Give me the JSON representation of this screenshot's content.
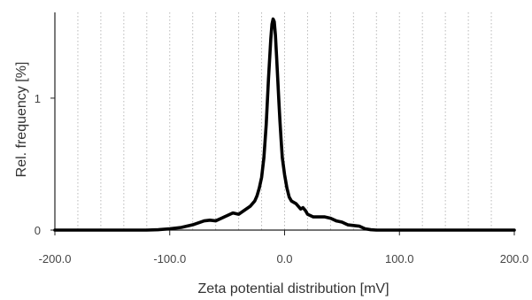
{
  "chart_data": {
    "type": "line",
    "title": "",
    "xlabel": "Zeta potential distribution [mV]",
    "ylabel": "Rel. frequency [%]",
    "xlim": [
      -200,
      200
    ],
    "ylim": [
      0,
      1.65
    ],
    "x_ticks": [
      -200,
      -100,
      0,
      100,
      200
    ],
    "x_tick_labels": [
      "-200.0",
      "-100.0",
      "0.0",
      "100.0",
      "200.0"
    ],
    "y_ticks": [
      0,
      1
    ],
    "y_tick_labels": [
      "0",
      "1"
    ],
    "grid": "vertical-dotted",
    "grid_x": [
      -180,
      -160,
      -140,
      -120,
      -100,
      -80,
      -60,
      -40,
      -20,
      0,
      20,
      40,
      60,
      80,
      100,
      120,
      140,
      160,
      180
    ],
    "line_color": "#000000",
    "grid_color": "#b8b8b8",
    "series": [
      {
        "x": [
          -200,
          -150,
          -120,
          -110,
          -100,
          -95,
          -90,
          -85,
          -80,
          -75,
          -70,
          -65,
          -60,
          -55,
          -50,
          -45,
          -40,
          -35,
          -30,
          -28,
          -26,
          -24,
          -22,
          -20,
          -18,
          -16,
          -14,
          -12,
          -11,
          -10,
          -9,
          -8,
          -7,
          -6,
          -5,
          -4,
          -3,
          -2,
          0,
          2,
          4,
          6,
          8,
          10,
          12,
          14,
          16,
          18,
          20,
          25,
          30,
          35,
          40,
          45,
          50,
          55,
          60,
          65,
          70,
          75,
          80,
          100,
          150,
          200
        ],
        "y": [
          0,
          0,
          0,
          0.003,
          0.01,
          0.015,
          0.02,
          0.03,
          0.04,
          0.055,
          0.07,
          0.075,
          0.07,
          0.09,
          0.11,
          0.13,
          0.12,
          0.15,
          0.18,
          0.2,
          0.22,
          0.26,
          0.32,
          0.4,
          0.55,
          0.8,
          1.15,
          1.45,
          1.56,
          1.6,
          1.58,
          1.48,
          1.32,
          1.15,
          0.98,
          0.82,
          0.68,
          0.55,
          0.42,
          0.32,
          0.25,
          0.22,
          0.21,
          0.2,
          0.18,
          0.16,
          0.17,
          0.15,
          0.12,
          0.1,
          0.1,
          0.1,
          0.09,
          0.07,
          0.06,
          0.04,
          0.035,
          0.03,
          0.01,
          0.003,
          0,
          0,
          0,
          0
        ]
      }
    ]
  }
}
